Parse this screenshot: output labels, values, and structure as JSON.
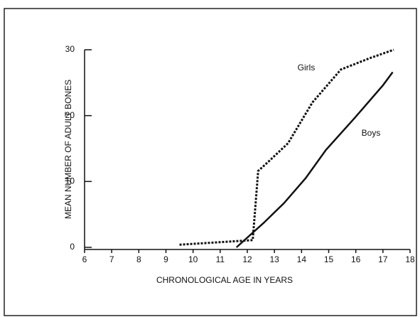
{
  "chart_data": {
    "type": "line",
    "xlabel": "CHRONOLOGICAL AGE IN YEARS",
    "ylabel": "MEAN NUMBER OF ADULT BONES",
    "xlim": [
      6,
      18
    ],
    "xticks": [
      6,
      7,
      8,
      9,
      10,
      11,
      12,
      13,
      14,
      15,
      16,
      17,
      18
    ],
    "ylim": [
      0,
      30
    ],
    "yticks": [
      0,
      10,
      20,
      30
    ],
    "annotations": [
      "Girls",
      "Boys"
    ],
    "series": [
      {
        "name": "Girls",
        "color": "#111111",
        "dashed": true,
        "x": [
          9.5,
          12.2,
          12.4,
          12.75,
          13.5,
          14.4,
          15.45,
          16.5,
          17.4
        ],
        "values": [
          0.4,
          1.1,
          11.6,
          12.9,
          15.8,
          22,
          27,
          28.7,
          30
        ]
      },
      {
        "name": "Boys",
        "color": "#111111",
        "dashed": false,
        "x": [
          11.6,
          12.6,
          13.35,
          14.15,
          14.9,
          15.97,
          17.0,
          17.36
        ],
        "values": [
          0,
          3.7,
          6.7,
          10.5,
          14.8,
          19.7,
          24.6,
          26.6
        ]
      }
    ]
  }
}
